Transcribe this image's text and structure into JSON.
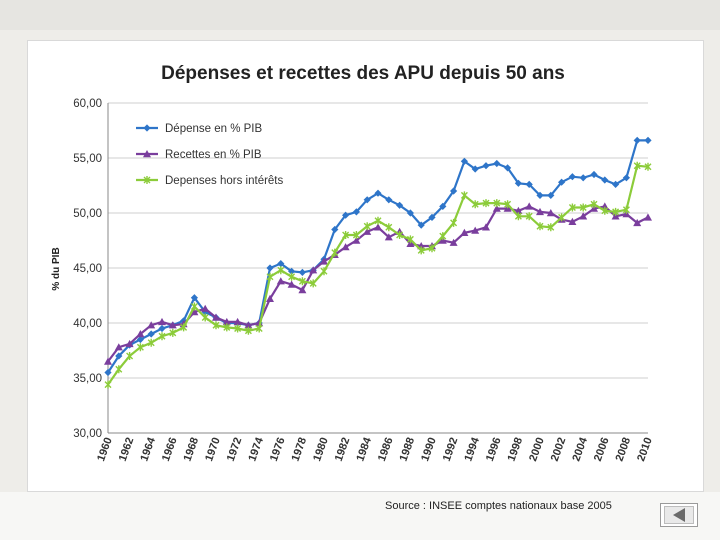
{
  "source_text": "Source : INSEE comptes nationaux base 2005",
  "navigation": {
    "icon": "back-arrow-icon"
  },
  "chart_data": {
    "type": "line",
    "title": "Dépenses et recettes des APU depuis 50 ans",
    "xlabel": "",
    "ylabel": "% du PIB",
    "x": [
      1960,
      1961,
      1962,
      1963,
      1964,
      1965,
      1966,
      1967,
      1968,
      1969,
      1970,
      1971,
      1972,
      1973,
      1974,
      1975,
      1976,
      1977,
      1978,
      1979,
      1980,
      1981,
      1982,
      1983,
      1984,
      1985,
      1986,
      1987,
      1988,
      1989,
      1990,
      1991,
      1992,
      1993,
      1994,
      1995,
      1996,
      1997,
      1998,
      1999,
      2000,
      2001,
      2002,
      2003,
      2004,
      2005,
      2006,
      2007,
      2008,
      2009,
      2010
    ],
    "x_tick_labels": [
      "1960",
      "1962",
      "1964",
      "1966",
      "1968",
      "1970",
      "1972",
      "1974",
      "1976",
      "1978",
      "1980",
      "1982",
      "1984",
      "1986",
      "1988",
      "1990",
      "1992",
      "1994",
      "1996",
      "1998",
      "2000",
      "2002",
      "2004",
      "2006",
      "2008",
      "2010"
    ],
    "y_tick_labels": [
      "30,00",
      "35,00",
      "40,00",
      "45,00",
      "50,00",
      "55,00",
      "60,00"
    ],
    "ylim": [
      30,
      60
    ],
    "grid": true,
    "legend_position": "top-left",
    "series": [
      {
        "name": "Dépense en % PIB",
        "color": "#2e75c9",
        "marker": "diamond",
        "values": [
          35.5,
          37.0,
          38.0,
          38.5,
          39.0,
          39.5,
          39.8,
          40.2,
          42.3,
          41.0,
          40.5,
          40.0,
          40.0,
          39.8,
          40.0,
          45.0,
          45.4,
          44.7,
          44.6,
          44.8,
          45.8,
          48.5,
          49.8,
          50.1,
          51.2,
          51.8,
          51.2,
          50.7,
          50.0,
          48.9,
          49.6,
          50.6,
          52.0,
          54.7,
          54.0,
          54.3,
          54.5,
          54.1,
          52.7,
          52.6,
          51.6,
          51.6,
          52.8,
          53.3,
          53.2,
          53.5,
          53.0,
          52.6,
          53.2,
          56.6,
          56.6
        ]
      },
      {
        "name": "Recettes en % PIB",
        "color": "#7a3e9d",
        "marker": "triangle",
        "values": [
          36.5,
          37.8,
          38.1,
          39.0,
          39.8,
          40.1,
          39.8,
          39.9,
          41.0,
          41.3,
          40.5,
          40.1,
          40.1,
          39.8,
          40.0,
          42.2,
          43.8,
          43.5,
          43.0,
          44.8,
          45.6,
          46.2,
          46.9,
          47.5,
          48.3,
          48.7,
          47.8,
          48.3,
          47.2,
          47.0,
          47.0,
          47.5,
          47.3,
          48.2,
          48.4,
          48.7,
          50.4,
          50.4,
          50.2,
          50.6,
          50.1,
          50.0,
          49.4,
          49.2,
          49.7,
          50.4,
          50.6,
          49.7,
          49.9,
          49.1,
          49.6
        ]
      },
      {
        "name": "Depenses hors intérêts",
        "color": "#8ccc3a",
        "marker": "x",
        "values": [
          34.4,
          35.8,
          37.0,
          37.8,
          38.2,
          38.8,
          39.1,
          39.6,
          41.5,
          40.5,
          39.8,
          39.6,
          39.5,
          39.3,
          39.5,
          44.2,
          44.8,
          44.2,
          43.8,
          43.6,
          44.7,
          46.4,
          48.0,
          48.0,
          48.8,
          49.3,
          48.7,
          48.0,
          47.6,
          46.6,
          46.8,
          47.9,
          49.1,
          51.6,
          50.8,
          50.9,
          50.9,
          50.8,
          49.7,
          49.7,
          48.8,
          48.7,
          49.6,
          50.5,
          50.5,
          50.8,
          50.2,
          50.1,
          50.3,
          54.3,
          54.2
        ]
      }
    ]
  }
}
